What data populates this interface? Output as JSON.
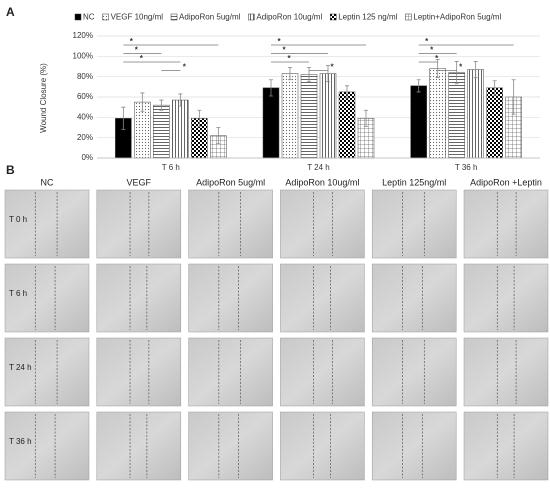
{
  "chart_data": {
    "type": "bar",
    "panel_label": "A",
    "y_label": "Wound Closure (%)",
    "categories": [
      "T 6 h",
      "T 24 h",
      "T 36 h"
    ],
    "series": [
      {
        "name": "NC",
        "color": "#000000",
        "pattern": "solid",
        "values": [
          39,
          69,
          71
        ],
        "errors": [
          11,
          8,
          6
        ]
      },
      {
        "name": "VEGF 10ng/ml",
        "color": "#555555",
        "pattern": "dots",
        "values": [
          55,
          83,
          88
        ],
        "errors": [
          9,
          6,
          9
        ]
      },
      {
        "name": "AdipoRon 5ug/ml",
        "color": "#555555",
        "pattern": "hlines",
        "values": [
          52,
          82,
          84
        ],
        "errors": [
          5,
          7,
          11
        ]
      },
      {
        "name": "AdipoRon 10ug/ml",
        "color": "#555555",
        "pattern": "vlines",
        "values": [
          57,
          83,
          87
        ],
        "errors": [
          6,
          8,
          8
        ]
      },
      {
        "name": "Leptin 125 ng/ml",
        "color": "#000000",
        "pattern": "checker",
        "values": [
          39,
          65,
          69
        ],
        "errors": [
          8,
          6,
          7
        ]
      },
      {
        "name": "Leptin+AdipoRon 5ug/ml",
        "color": "#555555",
        "pattern": "grid",
        "values": [
          22,
          39,
          60
        ],
        "errors": [
          8,
          8,
          17
        ]
      }
    ],
    "ylim": [
      0,
      120
    ],
    "yticks": [
      {
        "value": 0,
        "label": "0%"
      },
      {
        "value": 20,
        "label": "20%"
      },
      {
        "value": 40,
        "label": "40%"
      },
      {
        "value": 60,
        "label": "60%"
      },
      {
        "value": 80,
        "label": "80%"
      },
      {
        "value": 100,
        "label": "100%"
      },
      {
        "value": 120,
        "label": "120%"
      }
    ],
    "grid": true,
    "significance": [
      {
        "group": 0,
        "from": 0,
        "to": 5,
        "label": "*"
      },
      {
        "group": 0,
        "from": 0,
        "to": 2,
        "label": "*"
      },
      {
        "group": 0,
        "from": 0,
        "to": 3,
        "label": "*"
      },
      {
        "group": 0,
        "from": 2,
        "to": 3,
        "label": "*"
      },
      {
        "group": 1,
        "from": 0,
        "to": 5,
        "label": "*"
      },
      {
        "group": 1,
        "from": 0,
        "to": 3,
        "label": "*"
      },
      {
        "group": 1,
        "from": 0,
        "to": 2,
        "label": "*"
      },
      {
        "group": 1,
        "from": 2,
        "to": 3,
        "label": "*"
      },
      {
        "group": 2,
        "from": 0,
        "to": 5,
        "label": "*"
      },
      {
        "group": 2,
        "from": 0,
        "to": 2,
        "label": "*"
      },
      {
        "group": 2,
        "from": 0,
        "to": 1,
        "label": "*"
      },
      {
        "group": 2,
        "from": 1,
        "to": 2,
        "label": "*"
      }
    ]
  },
  "image_grid": {
    "panel_label": "B",
    "columns": [
      "NC",
      "VEGF",
      "AdipoRon 5ug/ml",
      "AdipoRon 10ug/ml",
      "Leptin 125ng/ml",
      "AdipoRon +Leptin"
    ],
    "rows": [
      "T 0 h",
      "T 6 h",
      "T 24 h",
      "T 36 h"
    ]
  }
}
